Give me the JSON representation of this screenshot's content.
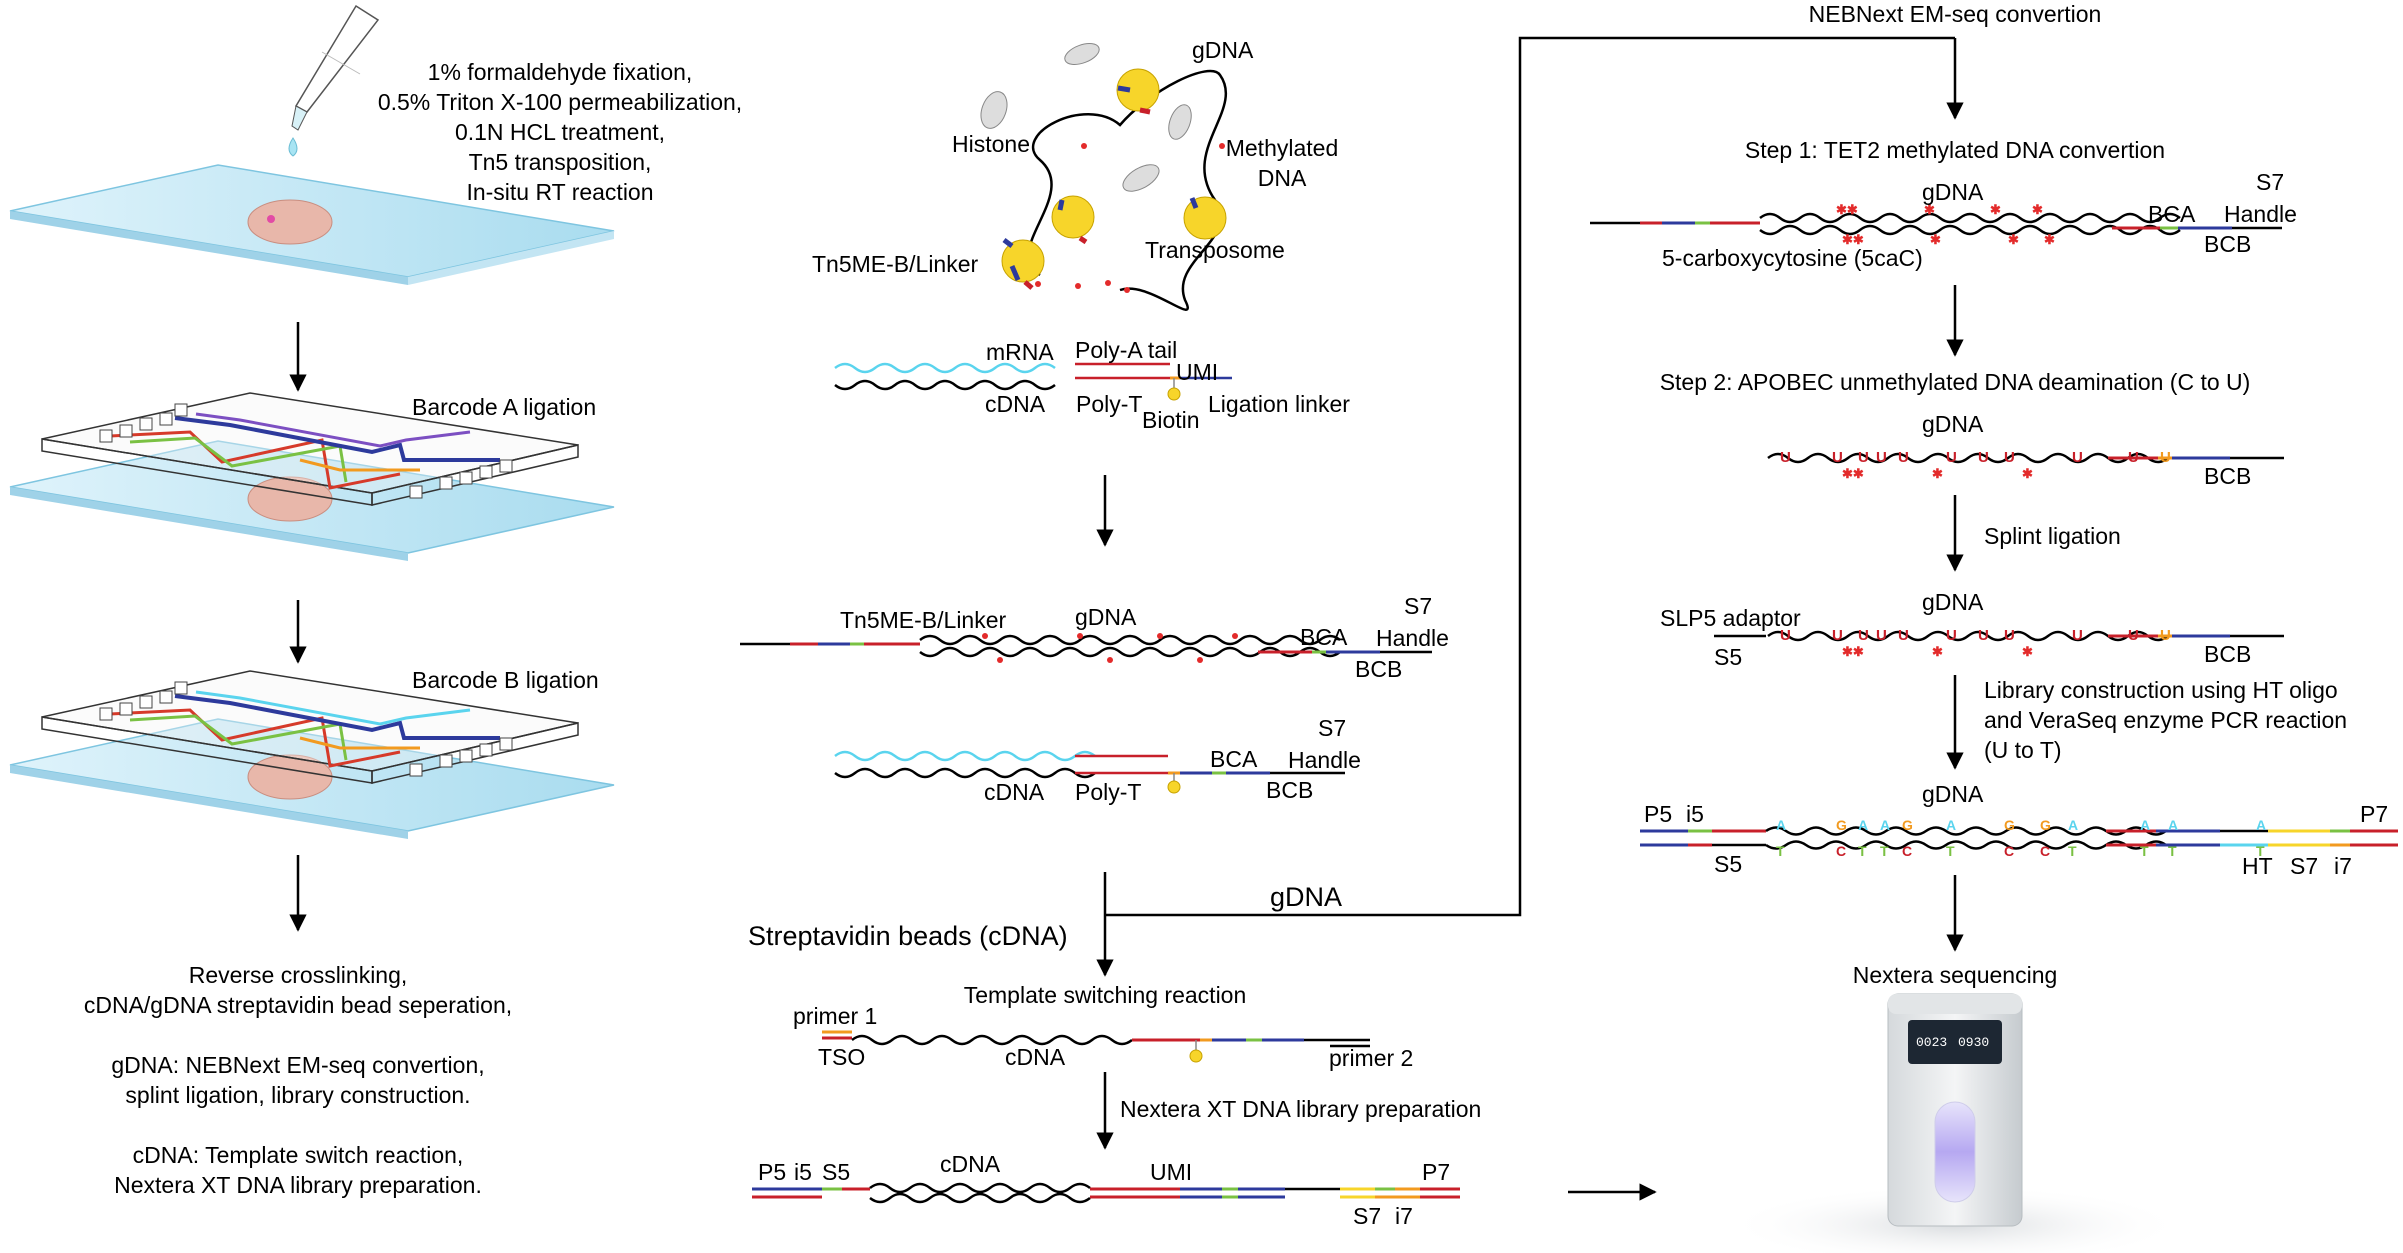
{
  "colors": {
    "accent_blue": "#5ad4ee",
    "linker_red": "#c8202a",
    "barcode_blue": "#2d3a9c",
    "barcode_green": "#7ac143",
    "bead_yellow": "#f7d52a",
    "slide_blue": "#bfe3f4",
    "tissue_pink": "#e8b7aa",
    "methyl_red": "#e32b2b",
    "p7_orange": "#f29a1f"
  },
  "left_column": {
    "fixation_steps": [
      "1% formaldehyde fixation,",
      "0.5% Triton X-100 permeabilization,",
      "0.1N HCL treatment,",
      "Tn5 transposition,",
      "In-situ RT reaction"
    ],
    "barcode_a_label": "Barcode A ligation",
    "barcode_b_label": "Barcode B ligation",
    "summary": [
      "Reverse crosslinking,",
      "cDNA/gDNA streptavidin bead seperation,",
      "",
      "gDNA: NEBNext EM-seq convertion,",
      "splint ligation, library construction.",
      "",
      "cDNA: Template switch reaction,",
      "Nextera XT DNA library preparation."
    ]
  },
  "middle_column": {
    "histone_label": "Histone",
    "gdna_label": "gDNA",
    "methylated_dna_label": [
      "Methylated",
      "DNA"
    ],
    "tn5_label": "Tn5ME-B/Linker",
    "transposome_label": "Transposome",
    "mrna_label": "mRNA",
    "polya_label": "Poly-A tail",
    "umi_label": "UMI",
    "cdna_label": "cDNA",
    "polyt_label": "Poly-T",
    "biotin_label": "Biotin",
    "ligation_linker_label": "Ligation linker",
    "construct_tn5_label": "Tn5ME-B/Linker",
    "construct_gdna_label": "gDNA",
    "bca_label": "BCA",
    "s7_label": "S7",
    "handle_label": "Handle",
    "bcb_label": "BCB",
    "cdna_construct": {
      "cdna": "cDNA",
      "polyt": "Poly-T",
      "bca": "BCA",
      "s7": "S7",
      "handle": "Handle",
      "bcb": "BCB"
    },
    "gdna_branch_label": "gDNA",
    "streptavidin_label": "Streptavidin beads (cDNA)",
    "template_switch_label": "Template switching reaction",
    "primer1_label": "primer 1",
    "tso_label": "TSO",
    "ts_cdna_label": "cDNA",
    "primer2_label": "primer 2",
    "nextera_xt_label": "Nextera XT DNA library preparation",
    "final": {
      "p5": "P5",
      "i5": "i5",
      "s5": "S5",
      "cdna": "cDNA",
      "umi": "UMI",
      "p7": "P7",
      "s7": "S7",
      "i7": "i7"
    }
  },
  "right_column": {
    "nebnext_label": "NEBNext EM-seq convertion",
    "step1_label": "Step 1: TET2 methylated DNA convertion",
    "step1_gdna": "gDNA",
    "s7_label": "S7",
    "handle_label": "Handle",
    "bca_label": "BCA",
    "bcb_label": "BCB",
    "fivecac_label": "5-carboxycytosine (5caC)",
    "step2_label": "Step 2: APOBEC unmethylated DNA deamination (C to U)",
    "step2_gdna": "gDNA",
    "step2_bcb": "BCB",
    "splint_label": "Splint ligation",
    "splint_gdna": "gDNA",
    "slp5_label": "SLP5 adaptor",
    "splint_s5": "S5",
    "splint_bcb": "BCB",
    "library_label": [
      "Library construction using HT oligo",
      "and VeraSeq enzyme PCR reaction",
      "(U to T)"
    ],
    "lib_gdna": "gDNA",
    "lib_p5": "P5",
    "lib_i5": "i5",
    "lib_s5": "S5",
    "lib_p7": "P7",
    "lib_ht": "HT",
    "lib_s7": "S7",
    "lib_i7": "i7",
    "nextera_seq_label": "Nextera sequencing",
    "sequencer_screen_left": "0023",
    "sequencer_screen_right": "0930",
    "base_u": "U",
    "base_a": "A",
    "base_t": "T",
    "base_c": "C",
    "base_g": "G"
  }
}
